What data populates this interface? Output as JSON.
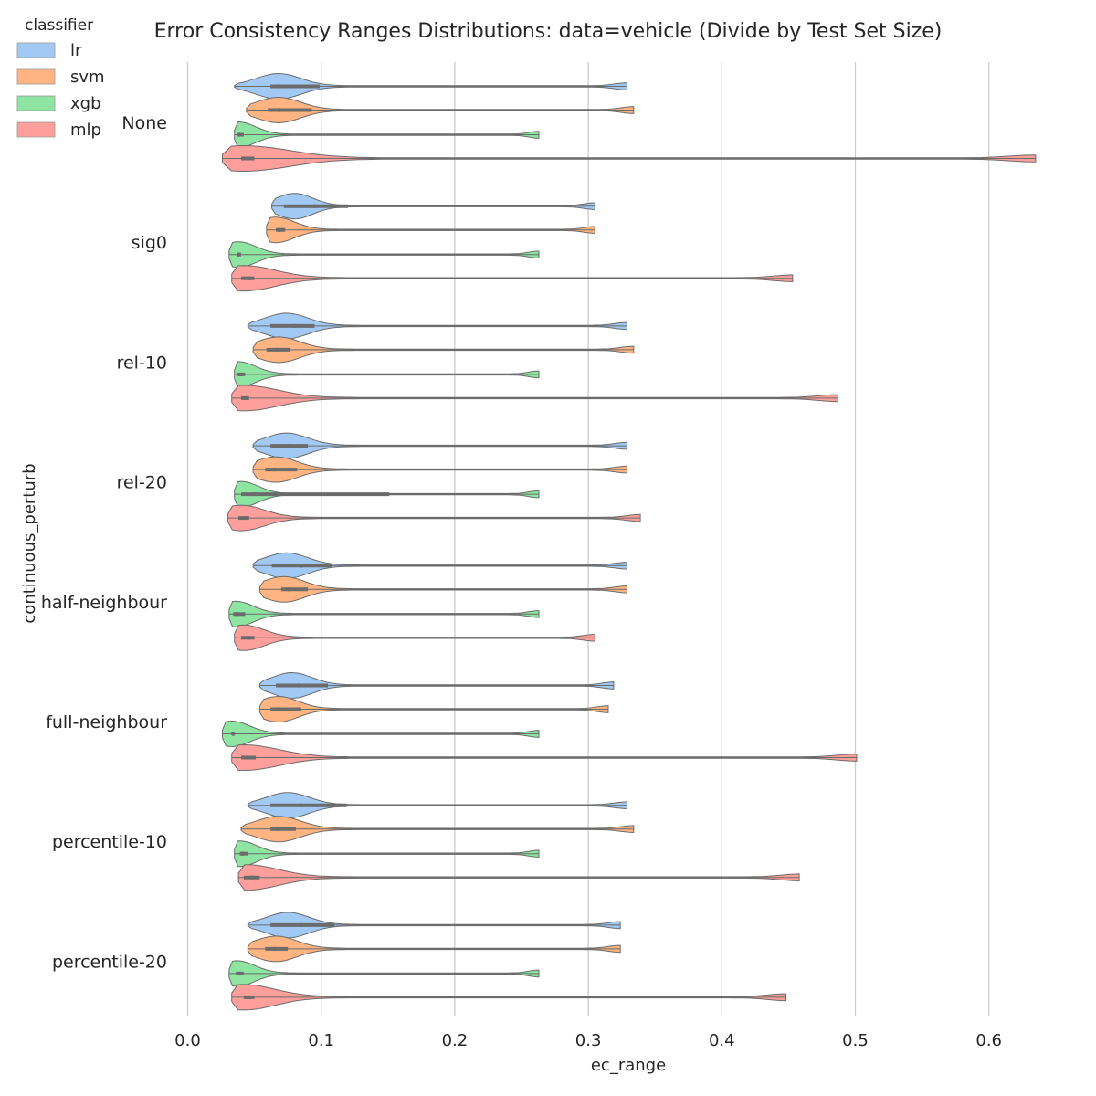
{
  "chart_data": {
    "type": "violin",
    "orientation": "horizontal",
    "title": "Error Consistency Ranges Distributions: data=vehicle (Divide by Test Set Size)",
    "xlabel": "ec_range",
    "ylabel": "continuous_perturb",
    "xlim": [
      0.0,
      0.65
    ],
    "xticks": [
      "0.0",
      "0.1",
      "0.2",
      "0.3",
      "0.4",
      "0.5",
      "0.6"
    ],
    "grid": "vertical",
    "legend": {
      "title": "classifier",
      "position": "top-left",
      "entries": [
        "lr",
        "svm",
        "xgb",
        "mlp"
      ]
    },
    "series_colors": {
      "lr": "#a1c9f4",
      "svm": "#ffb482",
      "xgb": "#8de5a1",
      "mlp": "#ff9f9b"
    },
    "categories": [
      "None",
      "sig0",
      "rel-10",
      "rel-20",
      "half-neighbour",
      "full-neighbour",
      "percentile-10",
      "percentile-20"
    ],
    "series": [
      {
        "name": "lr",
        "min": [
          0.035,
          0.063,
          0.045,
          0.049,
          0.049,
          0.054,
          0.045,
          0.045
        ],
        "q1": [
          0.062,
          0.072,
          0.062,
          0.062,
          0.063,
          0.066,
          0.062,
          0.062
        ],
        "median": [
          0.068,
          0.095,
          0.08,
          0.076,
          0.085,
          0.083,
          0.085,
          0.085
        ],
        "q3": [
          0.099,
          0.12,
          0.095,
          0.09,
          0.108,
          0.105,
          0.119,
          0.11
        ],
        "max": [
          0.329,
          0.305,
          0.329,
          0.329,
          0.329,
          0.319,
          0.329,
          0.324
        ],
        "mode": [
          0.068,
          0.08,
          0.074,
          0.074,
          0.074,
          0.078,
          0.075,
          0.075
        ]
      },
      {
        "name": "svm",
        "min": [
          0.044,
          0.059,
          0.049,
          0.049,
          0.054,
          0.054,
          0.04,
          0.045
        ],
        "q1": [
          0.06,
          0.066,
          0.059,
          0.058,
          0.07,
          0.062,
          0.062,
          0.058
        ],
        "median": [
          0.069,
          0.069,
          0.067,
          0.065,
          0.076,
          0.068,
          0.067,
          0.065
        ],
        "q3": [
          0.093,
          0.073,
          0.077,
          0.082,
          0.09,
          0.085,
          0.081,
          0.075
        ],
        "max": [
          0.334,
          0.305,
          0.334,
          0.329,
          0.329,
          0.315,
          0.334,
          0.324
        ],
        "mode": [
          0.068,
          0.066,
          0.068,
          0.066,
          0.072,
          0.068,
          0.068,
          0.066
        ]
      },
      {
        "name": "xgb",
        "min": [
          0.035,
          0.031,
          0.035,
          0.035,
          0.031,
          0.026,
          0.035,
          0.031
        ],
        "q1": [
          0.037,
          0.037,
          0.037,
          0.04,
          0.034,
          0.034,
          0.039,
          0.036
        ],
        "median": [
          0.039,
          0.038,
          0.04,
          0.05,
          0.037,
          0.034,
          0.041,
          0.039
        ],
        "q3": [
          0.042,
          0.04,
          0.043,
          0.151,
          0.043,
          0.035,
          0.045,
          0.042
        ],
        "max": [
          0.263,
          0.263,
          0.263,
          0.263,
          0.263,
          0.263,
          0.263,
          0.263
        ],
        "mode": [
          0.038,
          0.038,
          0.038,
          0.04,
          0.036,
          0.033,
          0.039,
          0.037
        ]
      },
      {
        "name": "mlp",
        "min": [
          0.026,
          0.033,
          0.033,
          0.03,
          0.035,
          0.033,
          0.038,
          0.033
        ],
        "q1": [
          0.04,
          0.04,
          0.04,
          0.038,
          0.04,
          0.04,
          0.042,
          0.042
        ],
        "median": [
          0.045,
          0.046,
          0.044,
          0.043,
          0.046,
          0.045,
          0.048,
          0.046
        ],
        "q3": [
          0.05,
          0.05,
          0.046,
          0.046,
          0.05,
          0.051,
          0.054,
          0.05
        ],
        "max": [
          0.635,
          0.453,
          0.487,
          0.339,
          0.305,
          0.501,
          0.458,
          0.448
        ],
        "mode": [
          0.042,
          0.042,
          0.042,
          0.04,
          0.042,
          0.042,
          0.044,
          0.042
        ]
      }
    ]
  }
}
